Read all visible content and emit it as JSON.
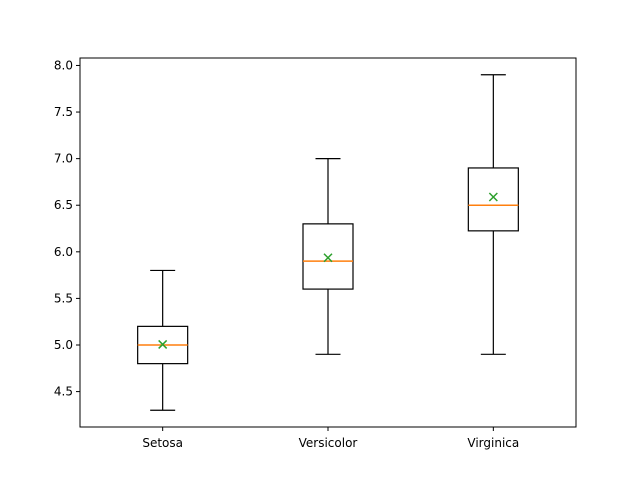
{
  "chart_data": {
    "type": "box",
    "title": "",
    "xlabel": "",
    "ylabel": "",
    "categories": [
      "Setosa",
      "Versicolor",
      "Virginica"
    ],
    "boxes": [
      {
        "category": "Setosa",
        "min": 4.3,
        "q1": 4.8,
        "median": 5.0,
        "q3": 5.2,
        "max": 5.8,
        "mean": 5.006
      },
      {
        "category": "Versicolor",
        "min": 4.9,
        "q1": 5.6,
        "median": 5.9,
        "q3": 6.3,
        "max": 7.0,
        "mean": 5.936
      },
      {
        "category": "Virginica",
        "min": 4.9,
        "q1": 6.225,
        "median": 6.5,
        "q3": 6.9,
        "max": 7.9,
        "mean": 6.588
      }
    ],
    "yticks": [
      "4.5",
      "5.0",
      "5.5",
      "6.0",
      "6.5",
      "7.0",
      "7.5",
      "8.0"
    ],
    "ylim": [
      4.12,
      8.08
    ],
    "grid": false,
    "colors": {
      "median": "#ff7f0e",
      "mean": "#2ca02c",
      "box": "#000000"
    },
    "mean_marker": "x"
  }
}
